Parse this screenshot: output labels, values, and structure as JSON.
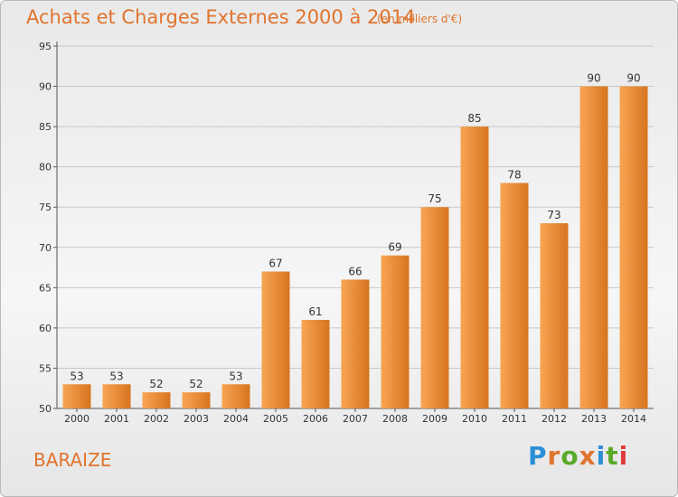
{
  "header": {
    "title": "Achats et Charges Externes 2000 à 2014",
    "unit": "(en milliers d'€)"
  },
  "footer": {
    "place": "BARAIZE",
    "brand": "Proxiti",
    "brand_colors": [
      "#2a8fd6",
      "#e0742e",
      "#5aaa2a",
      "#e0742e",
      "#2a8fd6",
      "#5aaa2a",
      "#e03a3a"
    ]
  },
  "colors": {
    "accent": "#e0742e",
    "bar_light": "#f7a553",
    "bar_dark": "#d8741f",
    "grid": "#c8c8c8"
  },
  "chart_data": {
    "type": "bar",
    "title": "Achats et Charges Externes 2000 à 2014",
    "subtitle": "(en milliers d'€)",
    "xlabel": "",
    "ylabel": "",
    "categories": [
      "2000",
      "2001",
      "2002",
      "2003",
      "2004",
      "2005",
      "2006",
      "2007",
      "2008",
      "2009",
      "2010",
      "2011",
      "2012",
      "2013",
      "2014"
    ],
    "values": [
      53,
      53,
      52,
      52,
      53,
      67,
      61,
      66,
      69,
      75,
      85,
      78,
      73,
      90,
      90
    ],
    "ylim": [
      50,
      95
    ],
    "yticks": [
      50,
      55,
      60,
      65,
      70,
      75,
      80,
      85,
      90,
      95
    ],
    "grid": true,
    "data_labels": true
  }
}
